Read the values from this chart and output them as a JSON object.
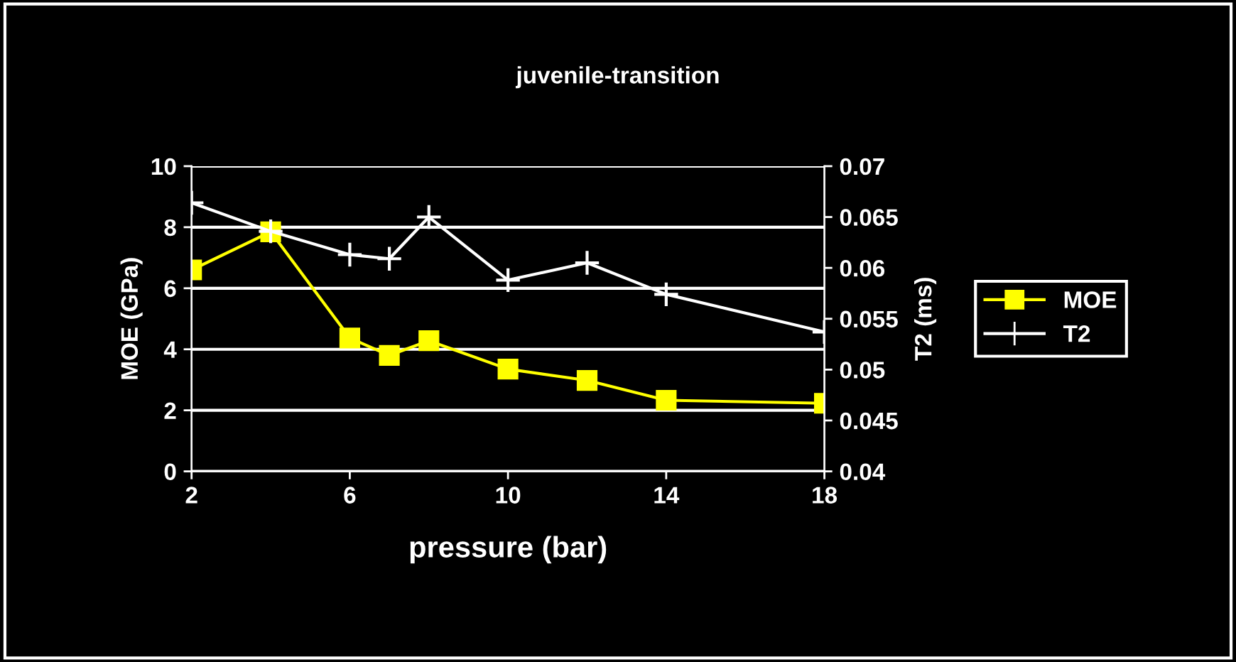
{
  "chart_data": {
    "type": "line",
    "title": "juvenile-transition",
    "xlabel": "pressure (bar)",
    "ylabel": "MOE (GPa)",
    "y2label": "T2 (ms)",
    "x": [
      2,
      4,
      6,
      7,
      8,
      10,
      12,
      14,
      18
    ],
    "series": [
      {
        "name": "MOE",
        "color": "#ffff00",
        "marker": "square",
        "values": [
          6.6,
          7.85,
          4.37,
          3.8,
          4.28,
          3.35,
          2.98,
          2.33,
          2.23
        ]
      },
      {
        "name": "T2",
        "color": "#ffffff",
        "marker": "cross",
        "axis": "y2",
        "values": [
          0.0664,
          0.0636,
          0.0613,
          0.0609,
          0.065,
          0.0588,
          0.0605,
          0.0574,
          0.0537
        ]
      }
    ],
    "xlim": [
      2,
      18
    ],
    "xticks": [
      2,
      6,
      10,
      14,
      18
    ],
    "ylim": [
      0,
      10
    ],
    "yticks": [
      0,
      2,
      4,
      6,
      8,
      10
    ],
    "y2lim": [
      0.04,
      0.07
    ],
    "y2ticks": [
      0.04,
      0.045,
      0.05,
      0.055,
      0.06,
      0.065,
      0.07
    ],
    "grid": "y",
    "legend": "right"
  }
}
